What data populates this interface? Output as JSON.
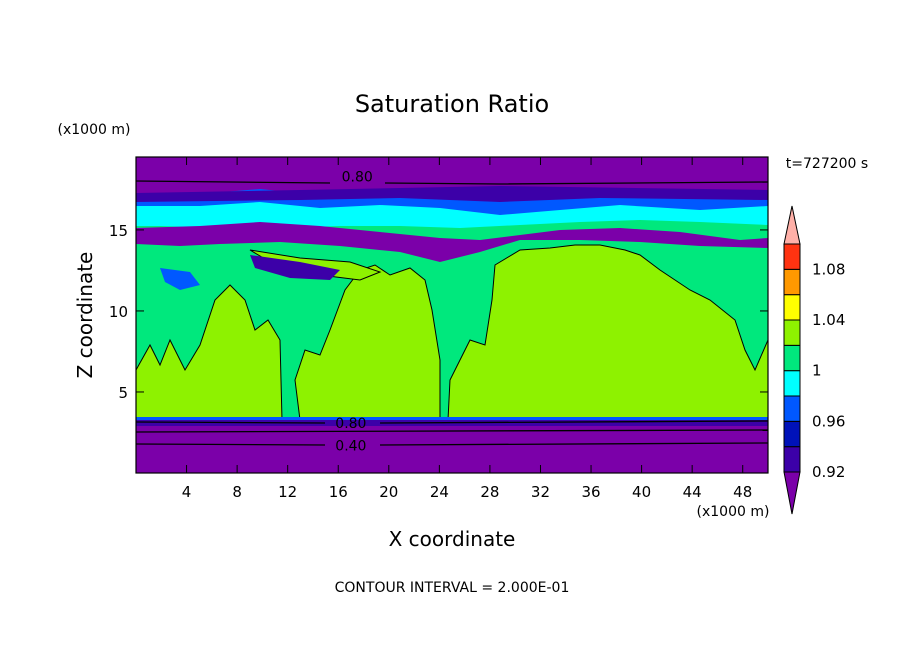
{
  "chart_data": {
    "type": "heatmap",
    "title": "Saturation Ratio",
    "xlabel": "X coordinate",
    "ylabel": "Z coordinate",
    "x_unit": "(x1000 m)",
    "y_unit": "(x1000 m)",
    "time_label": "t=727200 s",
    "footer": "CONTOUR INTERVAL = 2.000E-01",
    "xlim": [
      0,
      50
    ],
    "ylim": [
      0,
      19.5
    ],
    "x_ticks": [
      "4",
      "8",
      "12",
      "16",
      "20",
      "24",
      "28",
      "32",
      "36",
      "40",
      "44",
      "48"
    ],
    "y_ticks": [
      "5",
      "10",
      "15"
    ],
    "contour_labels": [
      {
        "text": "0.80",
        "x": 17.5,
        "z": 18.3
      },
      {
        "text": "0.80",
        "x": 17.0,
        "z": 3.1
      },
      {
        "text": "0.40",
        "x": 17.0,
        "z": 1.7
      }
    ],
    "colorbar": {
      "labels": [
        "1.08",
        "1.04",
        "1",
        "0.96",
        "0.92"
      ],
      "levels": [
        0.9,
        0.92,
        0.94,
        0.96,
        0.98,
        1.0,
        1.02,
        1.04,
        1.06,
        1.08,
        1.1
      ],
      "colors": [
        "#7b00a9",
        "#3c00a8",
        "#0012b9",
        "#0058ff",
        "#00ffff",
        "#00e87d",
        "#8ef200",
        "#ffff00",
        "#ff9900",
        "#ff3311",
        "#ffb0a8"
      ]
    },
    "layers": [
      {
        "z": [
          0,
          2.9
        ],
        "level": "<0.92"
      },
      {
        "z": [
          2.9,
          3.5
        ],
        "level": "0.92-0.94"
      },
      {
        "z": [
          3.5,
          14
        ],
        "level": "0.98-1.02"
      },
      {
        "z": [
          14,
          16.5
        ],
        "level": "0.92-0.98"
      },
      {
        "z": [
          16.5,
          17.5
        ],
        "level": "0.96-1.00"
      },
      {
        "z": [
          17.5,
          19.5
        ],
        "level": "<0.92"
      }
    ]
  }
}
